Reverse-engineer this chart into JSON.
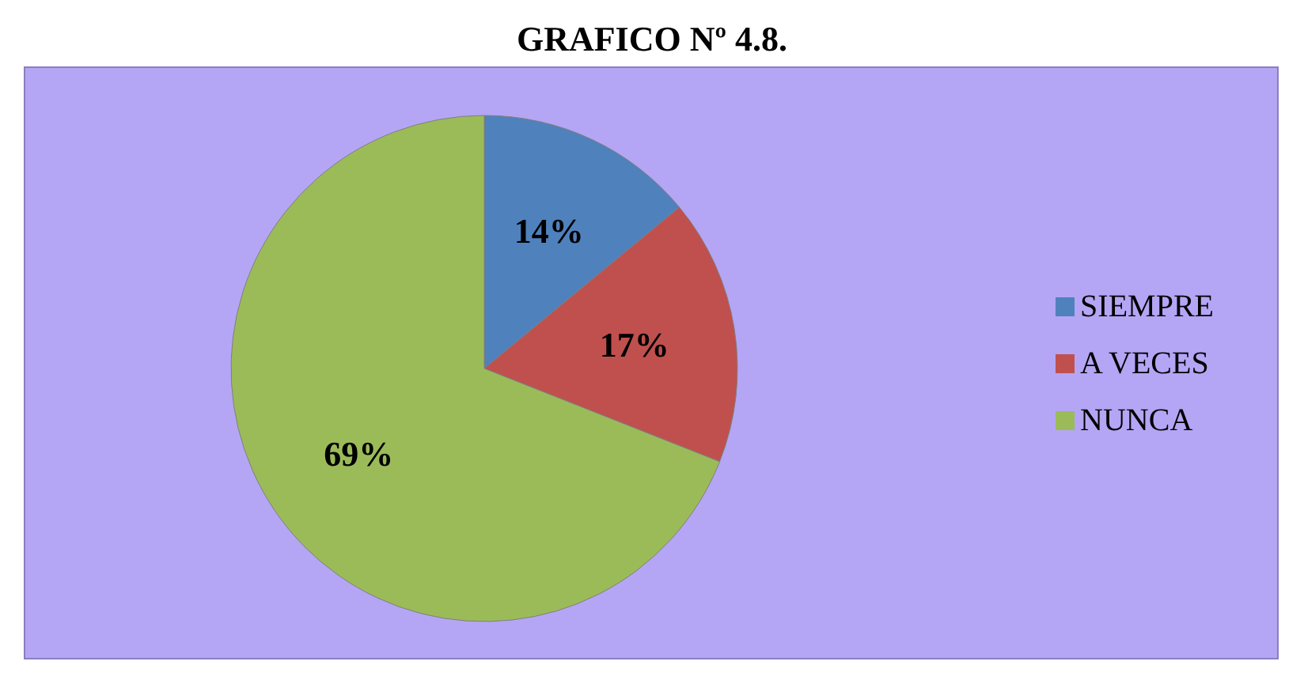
{
  "chart_data": {
    "type": "pie",
    "title": "GRAFICO Nº 4.8.",
    "categories": [
      "SIEMPRE",
      "A VECES",
      "NUNCA"
    ],
    "values": [
      14,
      17,
      69
    ],
    "value_labels": [
      "14%",
      "17%",
      "69%"
    ],
    "colors": [
      "#4f81bd",
      "#c0504d",
      "#9bbb59"
    ],
    "legend": "right"
  }
}
